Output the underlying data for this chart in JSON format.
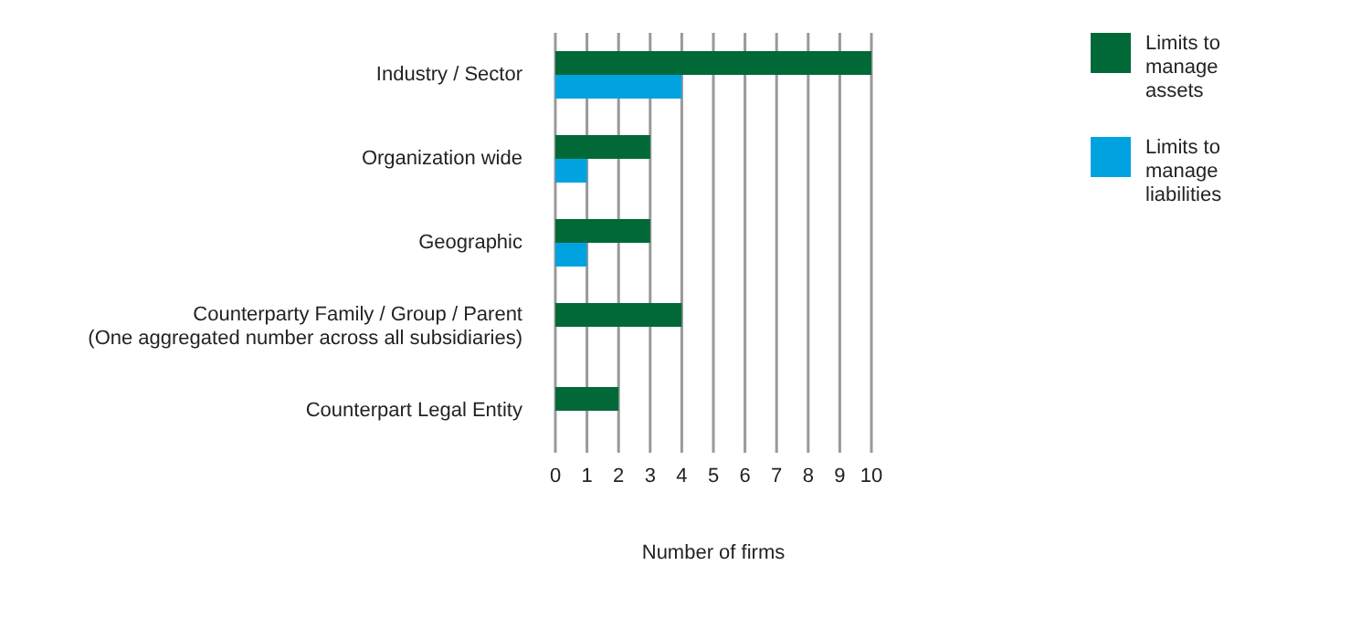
{
  "chart_data": {
    "type": "bar",
    "orientation": "horizontal",
    "xlabel": "Number of firms",
    "categories": [
      "Industry / Sector",
      "Organization wide",
      "Geographic",
      "Counterparty Family / Group / Parent\n(One aggregated number across all subsidiaries)",
      "Counterpart Legal Entity"
    ],
    "series": [
      {
        "name": "Limits to manage assets",
        "color": "#006937",
        "values": [
          10,
          3,
          3,
          4,
          2
        ]
      },
      {
        "name": "Limits to manage liabilities",
        "color": "#00a3e0",
        "values": [
          4,
          1,
          1,
          null,
          null
        ]
      }
    ],
    "xlim": [
      0,
      10
    ],
    "xticks": [
      0,
      1,
      2,
      3,
      4,
      5,
      6,
      7,
      8,
      9,
      10
    ],
    "grid": "x",
    "legend": "top right"
  }
}
